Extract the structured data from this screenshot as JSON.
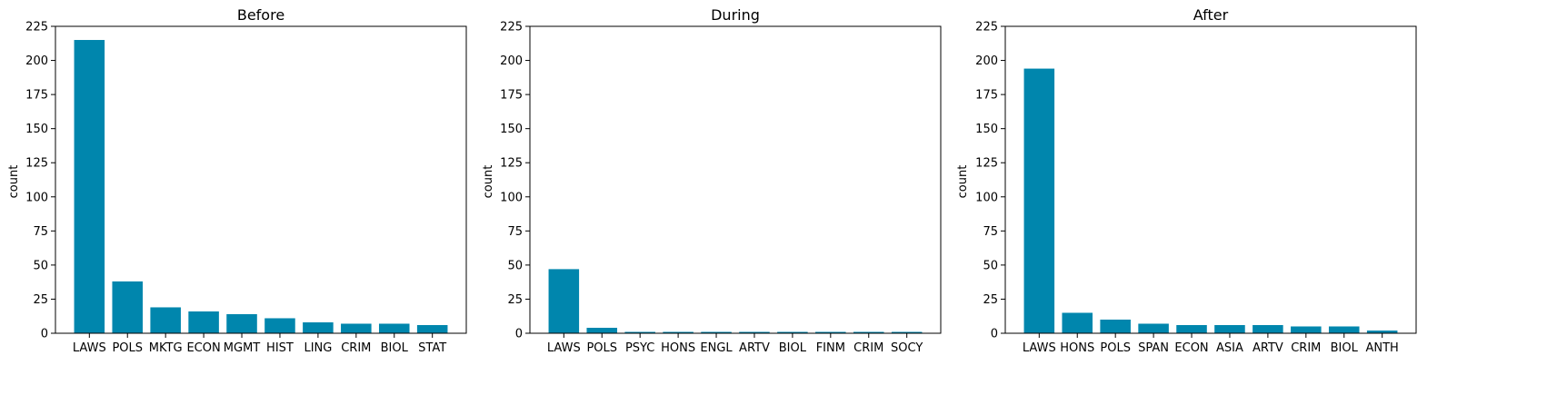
{
  "style": {
    "bar_color": "#0086ad",
    "axis_color": "#000000",
    "background": "#ffffff"
  },
  "chart_data": [
    {
      "type": "bar",
      "title": "Before",
      "xlabel": "",
      "ylabel": "count",
      "ylim": [
        0,
        225
      ],
      "yticks": [
        0,
        25,
        50,
        75,
        100,
        125,
        150,
        175,
        200,
        225
      ],
      "grid": false,
      "categories": [
        "LAWS",
        "POLS",
        "MKTG",
        "ECON",
        "MGMT",
        "HIST",
        "LING",
        "CRIM",
        "BIOL",
        "STAT"
      ],
      "values": [
        215,
        38,
        19,
        16,
        14,
        11,
        8,
        7,
        7,
        6
      ]
    },
    {
      "type": "bar",
      "title": "During",
      "xlabel": "",
      "ylabel": "count",
      "ylim": [
        0,
        225
      ],
      "yticks": [
        0,
        25,
        50,
        75,
        100,
        125,
        150,
        175,
        200,
        225
      ],
      "grid": false,
      "categories": [
        "LAWS",
        "POLS",
        "PSYC",
        "HONS",
        "ENGL",
        "ARTV",
        "BIOL",
        "FINM",
        "CRIM",
        "SOCY"
      ],
      "values": [
        47,
        4,
        1,
        1,
        1,
        1,
        1,
        1,
        1,
        1
      ]
    },
    {
      "type": "bar",
      "title": "After",
      "xlabel": "",
      "ylabel": "count",
      "ylim": [
        0,
        225
      ],
      "yticks": [
        0,
        25,
        50,
        75,
        100,
        125,
        150,
        175,
        200,
        225
      ],
      "grid": false,
      "categories": [
        "LAWS",
        "HONS",
        "POLS",
        "SPAN",
        "ECON",
        "ASIA",
        "ARTV",
        "CRIM",
        "BIOL",
        "ANTH"
      ],
      "values": [
        194,
        15,
        10,
        7,
        6,
        6,
        6,
        5,
        5,
        2
      ]
    }
  ]
}
